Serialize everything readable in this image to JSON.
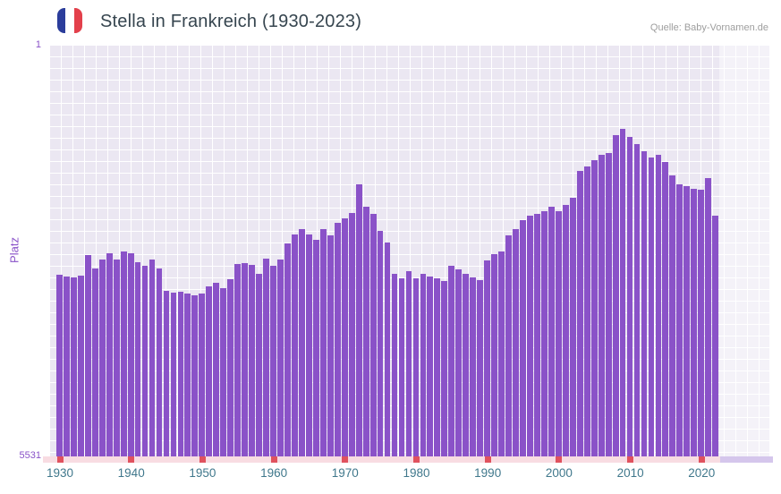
{
  "header": {
    "title": "Stella in Frankreich (1930-2023)",
    "source": "Quelle: Baby-Vornamen.de",
    "flag": "france-flag-icon"
  },
  "axes": {
    "y_axis_title": "Platz",
    "y_top_label": "1",
    "y_bottom_label": "5531",
    "x_ticks": [
      1930,
      1940,
      1950,
      1960,
      1970,
      1980,
      1990,
      2000,
      2010,
      2020
    ]
  },
  "colors": {
    "bar": "#8a52c8",
    "plot_background": "#ebe7f2",
    "grid": "#ffffff",
    "axis_strip": "#f8dce2",
    "decade_mark": "#e0525e",
    "x_label": "#40788c",
    "y_label": "#8952c8",
    "title": "#36454f",
    "source": "#9e9e9e",
    "no_data_band": "rgba(255,255,255,0.45)",
    "partial_strip": "#d5c6ec",
    "flag_blue": "#2b3d9b",
    "flag_red": "#e3404b"
  },
  "chart_data": {
    "type": "bar",
    "title": "Stella in Frankreich (1930-2023)",
    "xlabel": "",
    "ylabel": "Platz",
    "ylim": [
      1,
      5531
    ],
    "yaxis_inverted": true,
    "grid": true,
    "source": "Quelle: Baby-Vornamen.de",
    "no_data_from": 2023,
    "x": [
      1930,
      1931,
      1932,
      1933,
      1934,
      1935,
      1936,
      1937,
      1938,
      1939,
      1940,
      1941,
      1942,
      1943,
      1944,
      1945,
      1946,
      1947,
      1948,
      1949,
      1950,
      1951,
      1952,
      1953,
      1954,
      1955,
      1956,
      1957,
      1958,
      1959,
      1960,
      1961,
      1962,
      1963,
      1964,
      1965,
      1966,
      1967,
      1968,
      1969,
      1970,
      1971,
      1972,
      1973,
      1974,
      1975,
      1976,
      1977,
      1978,
      1979,
      1980,
      1981,
      1982,
      1983,
      1984,
      1985,
      1986,
      1987,
      1988,
      1989,
      1990,
      1991,
      1992,
      1993,
      1994,
      1995,
      1996,
      1997,
      1998,
      1999,
      2000,
      2001,
      2002,
      2003,
      2004,
      2005,
      2006,
      2007,
      2008,
      2009,
      2010,
      2011,
      2012,
      2013,
      2014,
      2015,
      2016,
      2017,
      2018,
      2019,
      2020,
      2021,
      2022,
      2023
    ],
    "values": [
      3090,
      3110,
      3130,
      3100,
      2830,
      3010,
      2890,
      2800,
      2890,
      2780,
      2800,
      2920,
      2970,
      2890,
      3010,
      3310,
      3330,
      3320,
      3340,
      3370,
      3340,
      3250,
      3200,
      3270,
      3150,
      2950,
      2930,
      2960,
      3080,
      2870,
      2970,
      2890,
      2670,
      2550,
      2480,
      2550,
      2620,
      2480,
      2560,
      2390,
      2330,
      2260,
      1880,
      2180,
      2270,
      2500,
      2660,
      3080,
      3140,
      3040,
      3140,
      3080,
      3110,
      3140,
      3170,
      2970,
      3020,
      3080,
      3130,
      3160,
      2900,
      2810,
      2780,
      2560,
      2480,
      2360,
      2300,
      2270,
      2240,
      2180,
      2240,
      2150,
      2060,
      1700,
      1640,
      1550,
      1480,
      1460,
      1220,
      1130,
      1240,
      1340,
      1430,
      1520,
      1480,
      1580,
      1760,
      1880,
      1900,
      1930,
      1950,
      1790,
      2300,
      null
    ]
  }
}
